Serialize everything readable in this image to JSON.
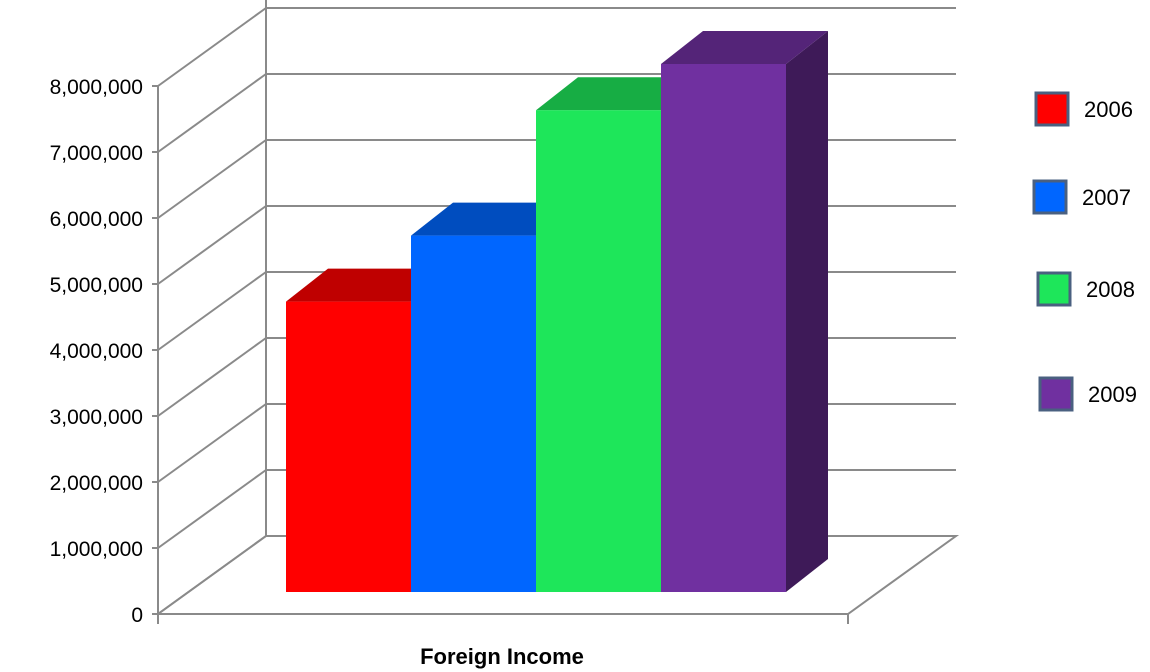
{
  "chart_data": {
    "type": "bar",
    "categories": [
      "Foreign Income"
    ],
    "series": [
      {
        "name": "2006",
        "values": [
          4400000
        ],
        "color": "#ff0000"
      },
      {
        "name": "2007",
        "values": [
          5400000
        ],
        "color": "#0066ff"
      },
      {
        "name": "2008",
        "values": [
          7300000
        ],
        "color": "#1ee65a"
      },
      {
        "name": "2009",
        "values": [
          8000000
        ],
        "color": "#7030a0"
      }
    ],
    "ylim": [
      0,
      8000000
    ],
    "yticks": [
      "0",
      "1,000,000",
      "2,000,000",
      "3,000,000",
      "4,000,000",
      "5,000,000",
      "6,000,000",
      "7,000,000",
      "8,000,000"
    ],
    "grid": true,
    "legend": "right",
    "style": "3d-column"
  }
}
